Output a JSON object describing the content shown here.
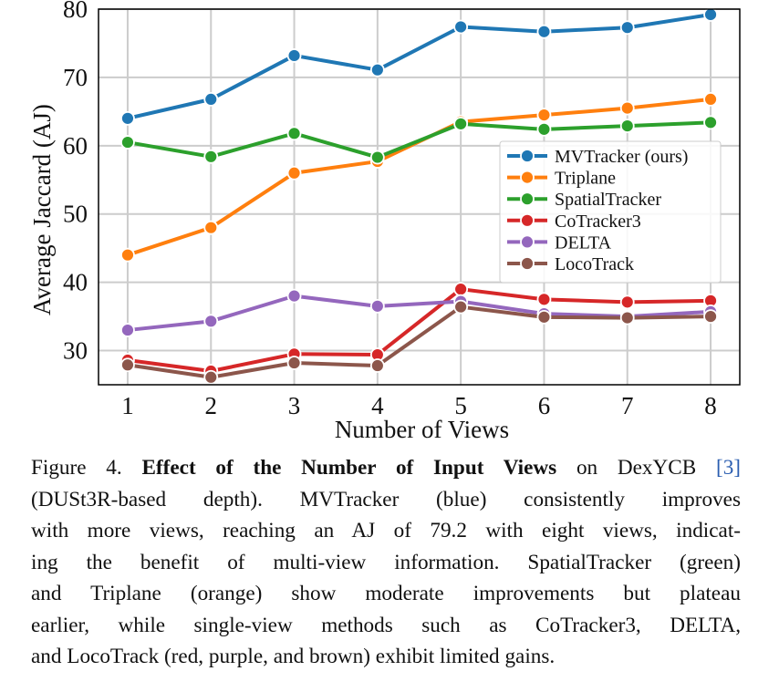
{
  "chart_data": {
    "type": "line",
    "xlabel": "Number of Views",
    "ylabel": "Average Jaccard (AJ)",
    "x": [
      1,
      2,
      3,
      4,
      5,
      6,
      7,
      8
    ],
    "xlim": [
      0.65,
      8.35
    ],
    "ylim": [
      25,
      80
    ],
    "yticks": [
      30,
      40,
      50,
      60,
      70,
      80
    ],
    "grid": true,
    "legend_position": "center-right",
    "series": [
      {
        "name": "MVTracker (ours)",
        "color": "#1f77b4",
        "values": [
          64.0,
          66.8,
          73.2,
          71.1,
          77.4,
          76.7,
          77.3,
          79.2
        ]
      },
      {
        "name": "Triplane",
        "color": "#ff7f0e",
        "values": [
          44.0,
          48.0,
          56.0,
          57.7,
          63.5,
          64.5,
          65.5,
          66.8
        ]
      },
      {
        "name": "SpatialTracker",
        "color": "#2ca02c",
        "values": [
          60.5,
          58.4,
          61.8,
          58.3,
          63.2,
          62.4,
          62.9,
          63.4
        ]
      },
      {
        "name": "CoTracker3",
        "color": "#d62728",
        "values": [
          28.6,
          27.0,
          29.5,
          29.4,
          39.0,
          37.5,
          37.1,
          37.3
        ]
      },
      {
        "name": "DELTA",
        "color": "#9467bd",
        "values": [
          33.0,
          34.3,
          38.0,
          36.5,
          37.2,
          35.4,
          35.0,
          35.7
        ]
      },
      {
        "name": "LocoTrack",
        "color": "#8c564b",
        "values": [
          27.9,
          26.1,
          28.2,
          27.8,
          36.4,
          34.9,
          34.8,
          35.0
        ]
      }
    ]
  },
  "caption": {
    "lines": [
      [
        {
          "t": "Figure 4. "
        },
        {
          "t": "Effect of the Number of Input Views",
          "b": true
        },
        {
          "t": " on DexYCB "
        },
        {
          "t": "[3]",
          "ref": true
        }
      ],
      [
        {
          "t": "(DUSt3R-based depth). MVTracker (blue) consistently improves"
        }
      ],
      [
        {
          "t": "with more views, reaching an AJ of 79.2 with eight views, indicat-"
        }
      ],
      [
        {
          "t": "ing the benefit of multi-view information. SpatialTracker (green)"
        }
      ],
      [
        {
          "t": "and Triplane (orange) show moderate improvements but plateau"
        }
      ],
      [
        {
          "t": "earlier, while single-view methods such as CoTracker3, DELTA,"
        }
      ],
      [
        {
          "t": "and LocoTrack (red, purple, and brown) exhibit limited gains."
        }
      ]
    ]
  }
}
